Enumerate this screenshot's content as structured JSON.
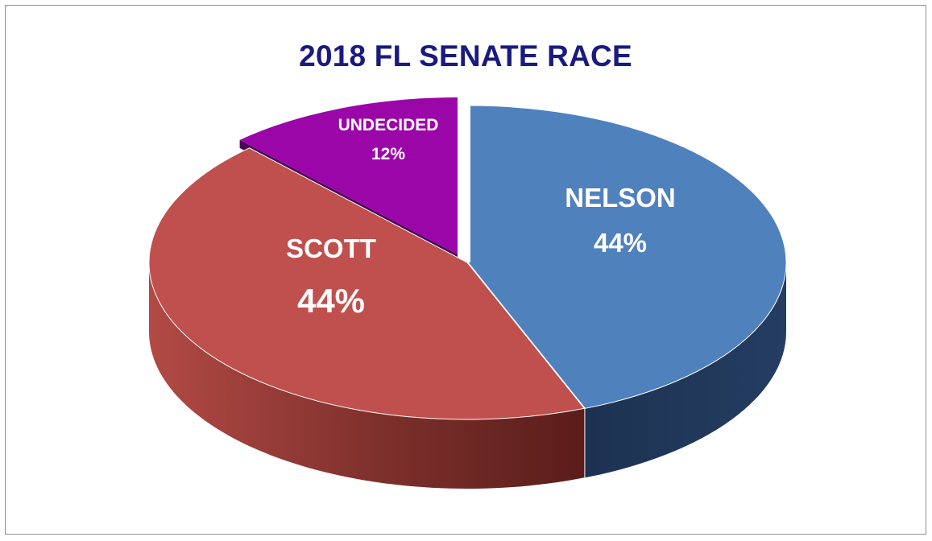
{
  "chart_data": {
    "type": "pie",
    "title": "2018 FL SENATE RACE",
    "slices": [
      {
        "label": "NELSON",
        "value": 44,
        "value_label": "44%",
        "color": "#4f81bd"
      },
      {
        "label": "SCOTT",
        "value": 44,
        "value_label": "44%",
        "color": "#c0504d"
      },
      {
        "label": "UNDECIDED",
        "value": 12,
        "value_label": "12%",
        "color": "#9b06a9"
      }
    ],
    "style": "3d-exploded",
    "legend": "none"
  }
}
